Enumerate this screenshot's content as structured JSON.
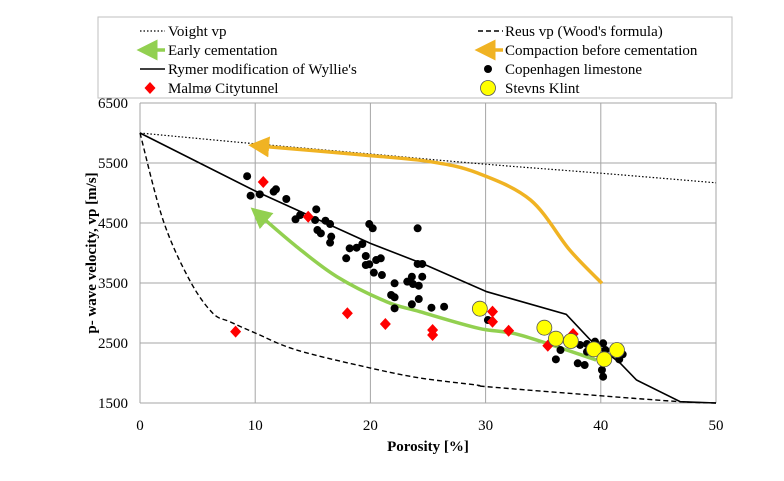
{
  "chart_data": {
    "type": "scatter",
    "xlabel": "Porosity [%]",
    "ylabel": "p- wave velocity, vp [m/s]",
    "xlim": [
      0,
      50
    ],
    "ylim": [
      1500,
      6500
    ],
    "xticks": [
      0,
      10,
      20,
      30,
      40,
      50
    ],
    "yticks": [
      1500,
      2500,
      3500,
      4500,
      5500,
      6500
    ],
    "grid": true,
    "legend_placement": "top",
    "colors": {
      "green": "#92d050",
      "orange": "#f0b323",
      "red": "#ff0000",
      "yellow": "#ffff00",
      "black": "#000000"
    },
    "legend": [
      {
        "label": "Voight vp",
        "kind": "dotted"
      },
      {
        "label": "Reus vp (Wood's formula)",
        "kind": "dashed"
      },
      {
        "label": "Early cementation",
        "kind": "arrow-green"
      },
      {
        "label": "Compaction before cementation",
        "kind": "arrow-orange"
      },
      {
        "label": "Rymer modification of Wyllie's",
        "kind": "solid"
      },
      {
        "label": "Copenhagen limestone",
        "kind": "dot-black"
      },
      {
        "label": "Malmø Citytunnel",
        "kind": "diamond-red"
      },
      {
        "label": "Stevns Klint",
        "kind": "circle-yellow"
      }
    ],
    "lines": [
      {
        "name": "Voight vp",
        "style": "dotted",
        "x": [
          0,
          10,
          20,
          30,
          40,
          50
        ],
        "y": [
          6000,
          5820,
          5650,
          5480,
          5330,
          5170
        ]
      },
      {
        "name": "Reus vp (Wood's formula)",
        "style": "dashed",
        "x": [
          0,
          2,
          4.3,
          6.3,
          7.8,
          10,
          13.6,
          20,
          24.3,
          29.2,
          30.1,
          39.9,
          46.9,
          50
        ],
        "y": [
          6000,
          4550,
          3550,
          3000,
          2855,
          2667,
          2383,
          2083,
          1917,
          1800,
          1772,
          1622,
          1522,
          1500
        ]
      },
      {
        "name": "Rymer modification of Wyllie's",
        "style": "solid",
        "x": [
          0,
          10,
          20,
          24.6,
          30.1,
          37.0,
          39.1,
          41.7,
          43.1,
          46.9,
          50
        ],
        "y": [
          6000,
          5033,
          4161,
          3817,
          3355,
          2978,
          2550,
          2161,
          1883,
          1522,
          1500
        ]
      }
    ],
    "arrows": [
      {
        "name": "Compaction before cementation",
        "color": "orange",
        "x": [
          40.1,
          37.3,
          33.9,
          29.3,
          25.2,
          19.4,
          10.3
        ],
        "y": [
          3495,
          4050,
          4883,
          5333,
          5522,
          5633,
          5783
        ]
      },
      {
        "name": "Early cementation",
        "color": "green",
        "x": [
          39.6,
          33,
          29.4,
          24.3,
          21.4,
          17.1,
          13.6,
          10.3
        ],
        "y": [
          2217,
          2633,
          2745,
          3022,
          3188,
          3605,
          4105,
          4645
        ]
      }
    ],
    "series": [
      {
        "name": "Copenhagen limestone",
        "marker": "dot-black",
        "x": [
          9.3,
          9.6,
          10.4,
          11.6,
          11.8,
          12.7,
          13.5,
          13.9,
          15.3,
          15.2,
          15.4,
          15.7,
          16.1,
          16.5,
          16.6,
          16.5,
          17.9,
          18.2,
          18.8,
          19.3,
          19.9,
          20.2,
          19.6,
          19.6,
          19.9,
          20.5,
          20.9,
          20.3,
          21.0,
          22.1,
          21.8,
          22.1,
          22.1,
          23.2,
          23.6,
          23.7,
          24.2,
          24.1,
          24.1,
          24.5,
          24.5,
          24.2,
          23.6,
          25.3,
          26.4,
          30.2,
          38.2,
          38.8,
          39.5,
          40.2,
          38.8,
          36.5,
          36.1,
          38.0,
          38.6,
          40.1,
          40.2,
          41.6,
          41.9,
          40.4,
          39.6
        ],
        "y": [
          5280,
          4955,
          4978,
          5022,
          5062,
          4900,
          4562,
          4633,
          4728,
          4550,
          4383,
          4328,
          4538,
          4483,
          4272,
          4172,
          3912,
          4078,
          4088,
          4150,
          4483,
          4412,
          3950,
          3800,
          3812,
          3883,
          3912,
          3672,
          3633,
          3495,
          3300,
          3262,
          3078,
          3522,
          3605,
          3483,
          3455,
          4412,
          3817,
          3817,
          3605,
          3233,
          3145,
          3088,
          3105,
          2883,
          2467,
          2483,
          2522,
          2495,
          2355,
          2383,
          2228,
          2162,
          2133,
          2050,
          1938,
          2228,
          2312,
          2383,
          2383
        ]
      },
      {
        "name": "Malmø Citytunnel",
        "marker": "diamond-red",
        "x": [
          10.7,
          14.6,
          8.3,
          18.0,
          21.3,
          25.4,
          25.4,
          30.6,
          30.6,
          32.0,
          35.4,
          37.6
        ],
        "y": [
          5183,
          4605,
          2689,
          2995,
          2817,
          2717,
          2633,
          3022,
          2855,
          2705,
          2455,
          2650
        ]
      },
      {
        "name": "Stevns Klint",
        "marker": "circle-yellow",
        "x": [
          29.5,
          35.1,
          36.1,
          37.4,
          39.4,
          40.3,
          41.4
        ],
        "y": [
          3072,
          2755,
          2572,
          2533,
          2395,
          2228,
          2383
        ]
      }
    ]
  }
}
